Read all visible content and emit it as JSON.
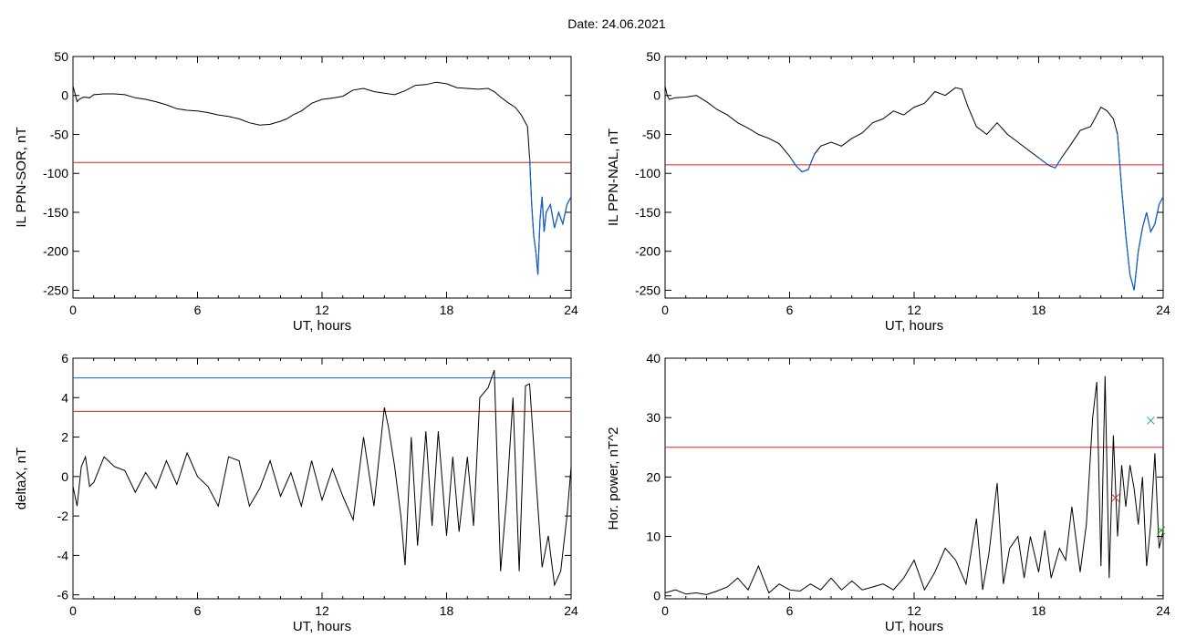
{
  "figure": {
    "title": "Date:  24.06.2021"
  },
  "colors": {
    "trace": "#000000",
    "threshold": "#e02020",
    "highlight": "#1060d0",
    "marker_red": "#e02020",
    "marker_teal": "#20a0a0",
    "marker_green": "#20a020"
  },
  "chart_data": [
    {
      "type": "line",
      "id": "ppn-sor",
      "ylabel": "IL PPN-SOR, nT",
      "xlabel": "UT, hours",
      "xlim": [
        0,
        24
      ],
      "ylim": [
        -260,
        50
      ],
      "xticks": [
        0,
        6,
        12,
        18,
        24
      ],
      "yticks": [
        50,
        0,
        -50,
        -100,
        -150,
        -200,
        -250
      ],
      "threshold_red": -86,
      "highlight_below": -86,
      "grid": false,
      "series": [
        {
          "x": [
            0,
            0.1,
            0.2,
            0.3,
            0.5,
            0.8,
            1,
            1.5,
            2,
            2.5,
            3,
            3.5,
            4,
            4.5,
            5,
            5.5,
            6,
            6.5,
            7,
            7.5,
            8,
            8.5,
            9,
            9.5,
            10,
            10.3,
            10.6,
            11,
            11.5,
            12,
            12.3,
            12.6,
            13,
            13.5,
            14,
            14.5,
            15,
            15.5,
            16,
            16.5,
            17,
            17.5,
            18,
            18.5,
            19,
            19.5,
            20,
            20.3,
            20.6,
            21,
            21.3,
            21.6,
            21.9,
            22,
            22.1,
            22.2,
            22.3,
            22.4,
            22.5,
            22.6,
            22.7,
            22.8,
            23,
            23.2,
            23.4,
            23.6,
            23.8,
            24
          ],
          "y": [
            12,
            2,
            -8,
            -5,
            -2,
            -3,
            1,
            2,
            2,
            1,
            -3,
            -5,
            -8,
            -12,
            -17,
            -19,
            -20,
            -22,
            -25,
            -27,
            -30,
            -35,
            -38,
            -37,
            -33,
            -30,
            -25,
            -20,
            -10,
            -5,
            -4,
            -3,
            -1,
            7,
            9,
            5,
            3,
            1,
            6,
            13,
            14,
            17,
            15,
            10,
            9,
            8,
            9,
            5,
            -2,
            -10,
            -15,
            -25,
            -40,
            -80,
            -140,
            -180,
            -200,
            -230,
            -160,
            -130,
            -175,
            -150,
            -140,
            -170,
            -150,
            -165,
            -140,
            -130
          ]
        }
      ]
    },
    {
      "type": "line",
      "id": "ppn-nal",
      "ylabel": "IL PPN-NAL, nT",
      "xlabel": "UT, hours",
      "xlim": [
        0,
        24
      ],
      "ylim": [
        -260,
        50
      ],
      "xticks": [
        0,
        6,
        12,
        18,
        24
      ],
      "yticks": [
        50,
        0,
        -50,
        -100,
        -150,
        -200,
        -250
      ],
      "threshold_red": -89,
      "highlight_below": -89,
      "grid": false,
      "series": [
        {
          "x": [
            0,
            0.1,
            0.2,
            0.5,
            1,
            1.5,
            2,
            2.5,
            3,
            3.5,
            4,
            4.5,
            5,
            5.5,
            6,
            6.3,
            6.6,
            6.9,
            7.2,
            7.5,
            8,
            8.5,
            9,
            9.5,
            10,
            10.5,
            11,
            11.5,
            12,
            12.5,
            13,
            13.5,
            14,
            14.3,
            14.6,
            15,
            15.5,
            16,
            16.5,
            17,
            17.5,
            18,
            18.5,
            18.8,
            19.1,
            19.5,
            20,
            20.5,
            21,
            21.3,
            21.6,
            21.8,
            22,
            22.2,
            22.4,
            22.6,
            22.8,
            23,
            23.2,
            23.4,
            23.6,
            23.8,
            24
          ],
          "y": [
            12,
            0,
            -5,
            -3,
            -2,
            0,
            -8,
            -18,
            -25,
            -35,
            -42,
            -50,
            -55,
            -62,
            -78,
            -90,
            -98,
            -95,
            -75,
            -65,
            -60,
            -65,
            -55,
            -48,
            -35,
            -30,
            -20,
            -25,
            -15,
            -10,
            5,
            0,
            10,
            8,
            -15,
            -40,
            -50,
            -35,
            -50,
            -60,
            -70,
            -80,
            -90,
            -93,
            -80,
            -65,
            -45,
            -40,
            -15,
            -20,
            -30,
            -50,
            -120,
            -180,
            -230,
            -250,
            -200,
            -170,
            -150,
            -175,
            -165,
            -140,
            -130
          ]
        }
      ]
    },
    {
      "type": "line",
      "id": "deltax",
      "ylabel": "deltaX, nT",
      "xlabel": "UT, hours",
      "xlim": [
        0,
        24
      ],
      "ylim": [
        -6.2,
        6
      ],
      "xticks": [
        0,
        6,
        12,
        18,
        24
      ],
      "yticks": [
        6,
        4,
        2,
        0,
        -2,
        -4,
        -6
      ],
      "threshold_red": 3.3,
      "threshold_blue": 5.0,
      "grid": false,
      "series": [
        {
          "x": [
            0,
            0.2,
            0.4,
            0.6,
            0.8,
            1,
            1.5,
            2,
            2.5,
            3,
            3.5,
            4,
            4.5,
            5,
            5.5,
            6,
            6.5,
            7,
            7.5,
            8,
            8.5,
            9,
            9.5,
            10,
            10.5,
            11,
            11.5,
            12,
            12.5,
            13,
            13.5,
            14,
            14.5,
            15,
            15.2,
            15.5,
            15.8,
            16,
            16.3,
            16.6,
            17,
            17.3,
            17.6,
            18,
            18.3,
            18.6,
            19,
            19.3,
            19.6,
            20,
            20.3,
            20.6,
            20.9,
            21.2,
            21.5,
            21.8,
            22,
            22.3,
            22.6,
            22.9,
            23.2,
            23.5,
            23.8,
            24
          ],
          "y": [
            -0.5,
            -1.5,
            0.5,
            1,
            -0.5,
            -0.3,
            1,
            0.5,
            0.3,
            -0.8,
            0.2,
            -0.6,
            0.8,
            -0.4,
            1.2,
            0,
            -0.5,
            -1.5,
            1,
            0.8,
            -1.5,
            -0.6,
            0.8,
            -1,
            0.2,
            -1.5,
            0.8,
            -1.2,
            0.4,
            -1,
            -2.2,
            2,
            -1.5,
            3.5,
            2.5,
            0.5,
            -2,
            -4.5,
            2,
            -3.5,
            2.3,
            -2.5,
            2.3,
            -3,
            1,
            -2.8,
            1,
            -2.5,
            4,
            4.5,
            5.4,
            -4.8,
            -1,
            4,
            -4.8,
            4.6,
            4.7,
            0,
            -4.6,
            -3,
            -5.5,
            -4.8,
            -2,
            0.5
          ]
        }
      ]
    },
    {
      "type": "line",
      "id": "hor-power",
      "ylabel": "Hor. power, nT^2",
      "xlabel": "UT, hours",
      "xlim": [
        0,
        24
      ],
      "ylim": [
        -0.5,
        40
      ],
      "xticks": [
        0,
        6,
        12,
        18,
        24
      ],
      "yticks": [
        40,
        30,
        20,
        10,
        0
      ],
      "threshold_red": 25,
      "grid": false,
      "markers": [
        {
          "x": 21.7,
          "y": 16.5,
          "symbol": "x",
          "color": "#e02020"
        },
        {
          "x": 23.4,
          "y": 29.5,
          "symbol": "x",
          "color": "#20a0a0"
        },
        {
          "x": 23.9,
          "y": 11,
          "symbol": "x",
          "color": "#20a020"
        }
      ],
      "series": [
        {
          "x": [
            0,
            0.5,
            1,
            1.5,
            2,
            2.5,
            3,
            3.5,
            4,
            4.5,
            5,
            5.5,
            6,
            6.5,
            7,
            7.5,
            8,
            8.5,
            9,
            9.5,
            10,
            10.5,
            11,
            11.5,
            12,
            12.5,
            13,
            13.5,
            14,
            14.5,
            15,
            15.3,
            15.6,
            16,
            16.3,
            16.6,
            17,
            17.3,
            17.6,
            18,
            18.3,
            18.6,
            19,
            19.3,
            19.6,
            20,
            20.3,
            20.6,
            20.8,
            21,
            21.2,
            21.4,
            21.6,
            21.8,
            22,
            22.2,
            22.4,
            22.6,
            22.8,
            23,
            23.2,
            23.4,
            23.6,
            23.8,
            24
          ],
          "y": [
            0.5,
            1,
            0.3,
            0.5,
            0.2,
            0.8,
            1.5,
            3,
            1,
            5,
            0.5,
            2,
            1,
            0.8,
            2,
            1,
            3,
            1,
            2.5,
            1,
            1.5,
            2,
            1,
            3,
            6,
            1,
            4,
            8,
            6,
            2,
            13,
            1,
            7,
            19,
            2,
            8,
            10,
            3,
            10,
            4,
            11,
            3,
            8,
            6,
            15,
            4,
            12,
            30,
            36,
            5,
            37,
            3,
            27,
            10,
            22,
            15,
            22,
            18,
            12,
            20,
            5,
            12,
            24,
            8,
            11
          ]
        }
      ]
    }
  ]
}
